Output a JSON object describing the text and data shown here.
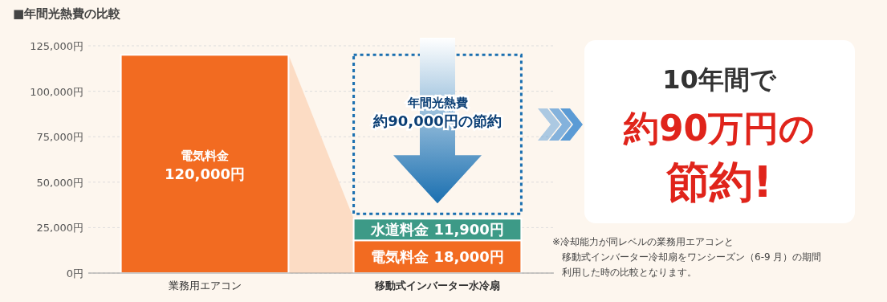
{
  "chart_data": {
    "type": "bar",
    "stacked": true,
    "title": "■年間光熱費の比較",
    "categories": [
      "業務用エアコン",
      "移動式インバーター水冷扇"
    ],
    "series": [
      {
        "color": "#f26b21",
        "values": [
          120000,
          18000
        ],
        "value_labels": [
          "電気料金\n120,000円",
          "電気料金 18,000円"
        ]
      },
      {
        "color": "#3d9a87",
        "values": [
          null,
          11900
        ],
        "value_labels": [
          null,
          "水道料金 11,900円"
        ]
      }
    ],
    "ylim": [
      0,
      125000
    ],
    "yticks": [
      {
        "value": 0,
        "label": "0円"
      },
      {
        "value": 25000,
        "label": "25,000円"
      },
      {
        "value": 50000,
        "label": "50,000円"
      },
      {
        "value": 75000,
        "label": "75,000円"
      },
      {
        "value": 100000,
        "label": "100,000円"
      },
      {
        "value": 125000,
        "label": "125,000円"
      }
    ],
    "grid": "y",
    "annotations": [
      "年間光熱費約90,000円の節約",
      "10年間で約90万円の節約!",
      "※冷却能力が同レベルの業務用エアコンと移動式インバーター冷却扇をワンシーズン（6-9 月）の期間利用した時の比較となります。"
    ]
  }
}
